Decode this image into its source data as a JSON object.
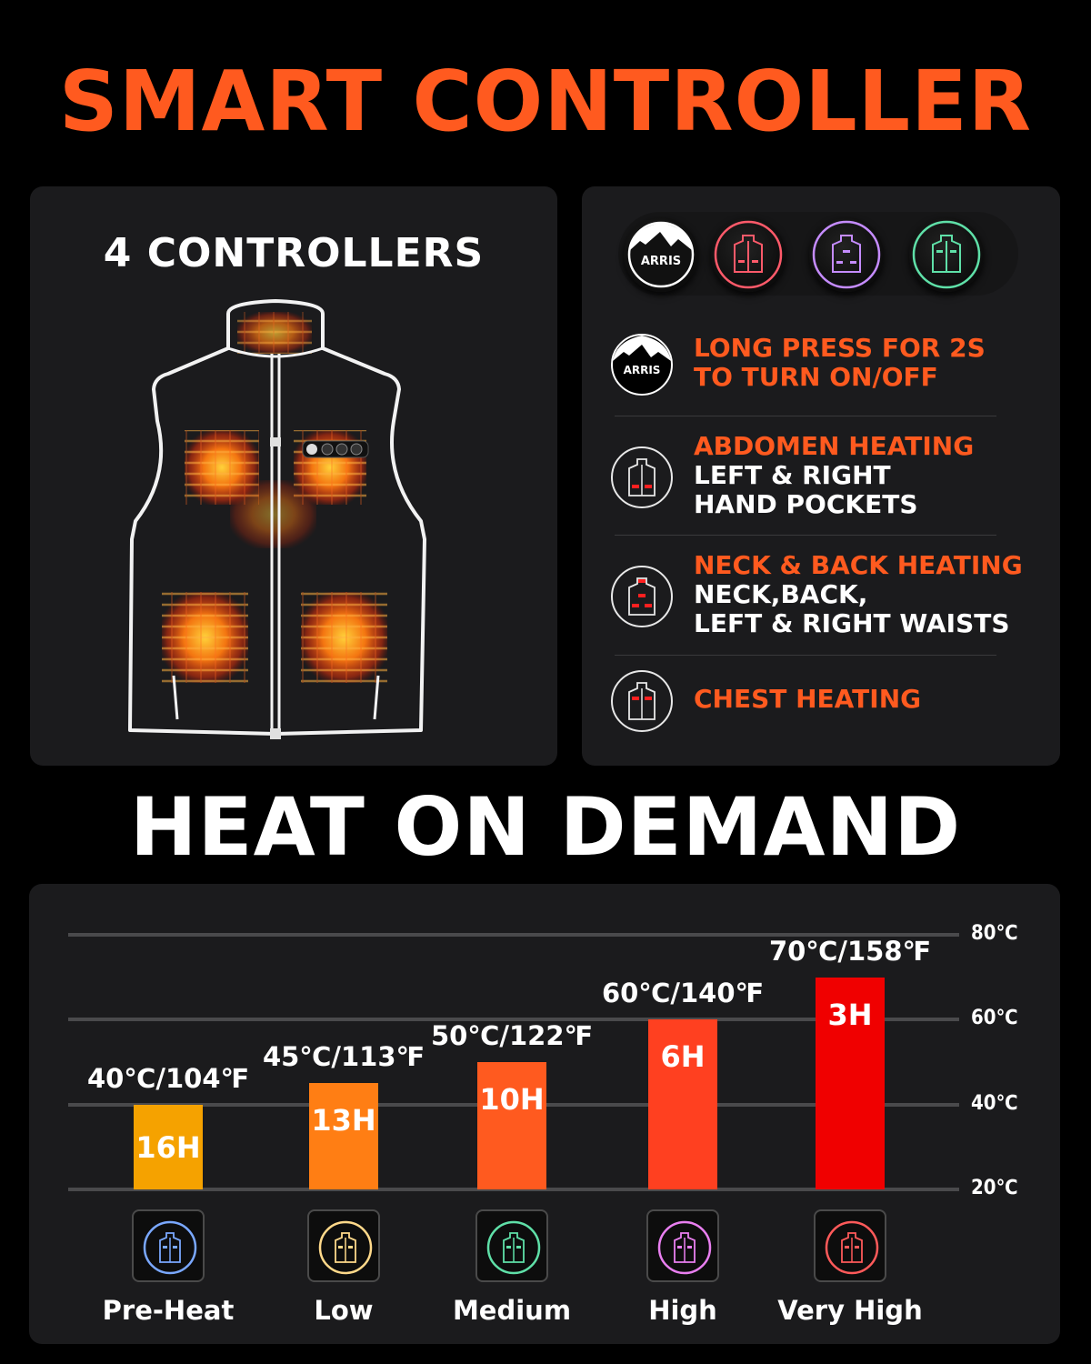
{
  "header": {
    "title": "SMART CONTROLLER"
  },
  "left_panel": {
    "title": "4 CONTROLLERS",
    "illustration": "heated-vest-with-6-heating-zones"
  },
  "right_panel": {
    "buttons": [
      {
        "icon": "arris-logo-icon",
        "label": "ARRIS",
        "color": "#ffffff"
      },
      {
        "icon": "vest-abdomen-icon",
        "color": "#ff5a6a"
      },
      {
        "icon": "vest-back-icon",
        "color": "#c58cff"
      },
      {
        "icon": "vest-chest-icon",
        "color": "#5fe0a8"
      }
    ],
    "features": [
      {
        "icon": "arris-logo-icon",
        "logo_text": "ARRIS",
        "heading": "LONG PRESS FOR 2S",
        "heading2": "TO TURN ON/OFF",
        "lines": []
      },
      {
        "icon": "vest-abdomen-icon",
        "heading": "ABDOMEN HEATING",
        "lines": [
          "LEFT & RIGHT",
          "HAND POCKETS"
        ]
      },
      {
        "icon": "vest-back-icon",
        "heading": "NECK & BACK HEATING",
        "lines": [
          "NECK,BACK,",
          "LEFT & RIGHT WAISTS"
        ]
      },
      {
        "icon": "vest-chest-icon",
        "heading": "CHEST HEATING",
        "lines": []
      }
    ]
  },
  "section2": {
    "title": "HEAT ON DEMAND"
  },
  "chart_data": {
    "type": "bar",
    "title": "HEAT ON DEMAND",
    "categories": [
      "Pre-Heat",
      "Low",
      "Medium",
      "High",
      "Very High"
    ],
    "series": [
      {
        "name": "Temperature (°C)",
        "values": [
          40,
          45,
          50,
          60,
          70
        ]
      }
    ],
    "bar_labels_temp": [
      "40℃/104℉",
      "45℃/113℉",
      "50℃/122℉",
      "60℃/140℉",
      "70℃/158℉"
    ],
    "bar_labels_runtime": [
      "16H",
      "13H",
      "10H",
      "6H",
      "3H"
    ],
    "runtime_hours": [
      16,
      13,
      10,
      6,
      3
    ],
    "fahrenheit": [
      104,
      113,
      122,
      140,
      158
    ],
    "bar_colors": [
      "#f5a200",
      "#ff7e14",
      "#ff5a1f",
      "#ff4020",
      "#f00000"
    ],
    "mode_icon_colors": [
      "#7aa8ff",
      "#ffd98a",
      "#5fe0a8",
      "#e97ff0",
      "#ff5a5a"
    ],
    "y_ticks": [
      "80℃",
      "60℃",
      "40℃",
      "20℃"
    ],
    "y_tick_values": [
      80,
      60,
      40,
      20
    ],
    "ylim": [
      20,
      80
    ],
    "xlabel": "",
    "ylabel": "",
    "grid": true,
    "y_axis_position": "right",
    "legend": "none"
  }
}
